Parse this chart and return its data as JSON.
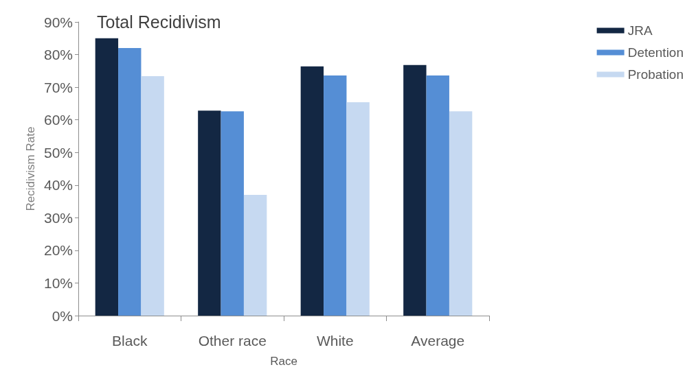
{
  "chart_data": {
    "type": "bar",
    "title": "Total Recidivism",
    "xlabel": "Race",
    "ylabel": "Recidivism Rate",
    "categories": [
      "Black",
      "Other race",
      "White",
      "Average"
    ],
    "series": [
      {
        "name": "JRA",
        "color": "#132743",
        "values": [
          85,
          62.8,
          76.4,
          76.8
        ]
      },
      {
        "name": "Detention",
        "color": "#558ed5",
        "values": [
          82,
          62.6,
          73.6,
          73.6
        ]
      },
      {
        "name": "Probation",
        "color": "#c6d9f1",
        "values": [
          73.4,
          37.0,
          65.4,
          62.6
        ]
      }
    ],
    "ylim": [
      0,
      90
    ],
    "yticks": [
      {
        "value": 0,
        "label": "0%"
      },
      {
        "value": 10,
        "label": "10%"
      },
      {
        "value": 20,
        "label": "20%"
      },
      {
        "value": 30,
        "label": "30%"
      },
      {
        "value": 40,
        "label": "40%"
      },
      {
        "value": 50,
        "label": "50%"
      },
      {
        "value": 60,
        "label": "60%"
      },
      {
        "value": 70,
        "label": "70%"
      },
      {
        "value": 80,
        "label": "80%"
      },
      {
        "value": 90,
        "label": "90%"
      }
    ],
    "grid": false,
    "legend": "top right"
  }
}
